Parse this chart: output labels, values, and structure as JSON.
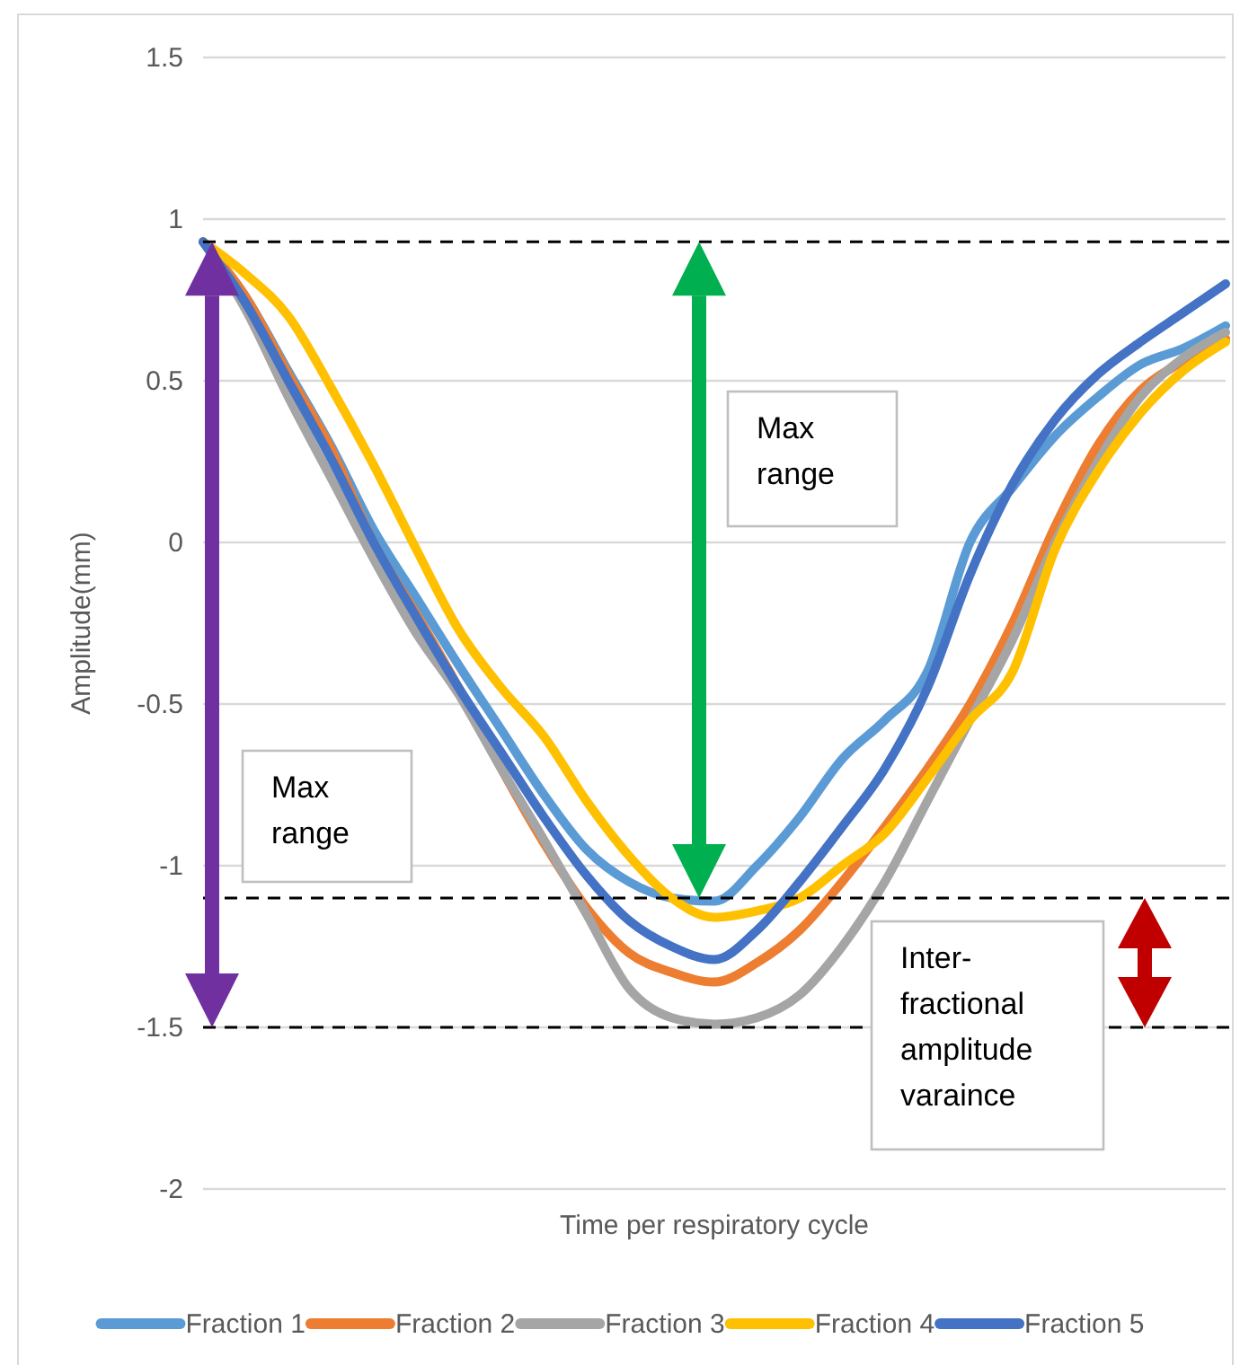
{
  "chart_data": {
    "type": "line",
    "xlabel": "Time per respiratory cycle",
    "ylabel": "Amplitude(mm)",
    "categories": [
      null,
      null,
      null,
      null,
      null,
      null,
      null,
      null,
      null,
      null,
      null,
      null,
      null,
      null,
      null,
      null,
      null,
      null,
      null,
      null,
      null,
      null,
      null,
      null,
      null
    ],
    "series": [
      {
        "name": "Fraction 1",
        "color": "#5b9bd5",
        "values": [
          0.93,
          0.76,
          0.53,
          0.3,
          0.04,
          -0.17,
          -0.38,
          -0.58,
          -0.78,
          -0.95,
          -1.05,
          -1.1,
          -1.11,
          -1.0,
          -0.85,
          -0.67,
          -0.55,
          -0.4,
          0.0,
          0.17,
          0.33,
          0.45,
          0.55,
          0.6,
          0.67
        ]
      },
      {
        "name": "Fraction 2",
        "color": "#ed7d31",
        "values": [
          0.93,
          0.76,
          0.52,
          0.29,
          0.0,
          -0.22,
          -0.45,
          -0.7,
          -0.93,
          -1.13,
          -1.27,
          -1.33,
          -1.36,
          -1.3,
          -1.2,
          -1.05,
          -0.88,
          -0.7,
          -0.5,
          -0.25,
          0.05,
          0.3,
          0.47,
          0.56,
          0.63
        ]
      },
      {
        "name": "Fraction 3",
        "color": "#a5a5a5",
        "values": [
          0.93,
          0.72,
          0.45,
          0.2,
          -0.05,
          -0.28,
          -0.47,
          -0.7,
          -0.92,
          -1.15,
          -1.38,
          -1.47,
          -1.49,
          -1.47,
          -1.4,
          -1.25,
          -1.05,
          -0.8,
          -0.55,
          -0.3,
          0.0,
          0.25,
          0.45,
          0.57,
          0.65
        ]
      },
      {
        "name": "Fraction 4",
        "color": "#ffc000",
        "values": [
          0.93,
          0.83,
          0.7,
          0.48,
          0.24,
          -0.02,
          -0.27,
          -0.45,
          -0.6,
          -0.8,
          -0.97,
          -1.1,
          -1.16,
          -1.14,
          -1.1,
          -1.0,
          -0.9,
          -0.73,
          -0.55,
          -0.4,
          -0.02,
          0.22,
          0.4,
          0.53,
          0.62
        ]
      },
      {
        "name": "Fraction 5",
        "color": "#4472c4",
        "values": [
          0.93,
          0.74,
          0.5,
          0.26,
          0.0,
          -0.23,
          -0.45,
          -0.65,
          -0.85,
          -1.03,
          -1.17,
          -1.25,
          -1.29,
          -1.2,
          -1.05,
          -0.88,
          -0.7,
          -0.45,
          -0.1,
          0.18,
          0.38,
          0.52,
          0.62,
          0.71,
          0.8
        ]
      }
    ],
    "ylim": [
      -2,
      1.5
    ],
    "yticks": [
      -2,
      -1.5,
      -1,
      -0.5,
      0,
      0.5,
      1,
      1.5
    ],
    "grid": "y",
    "legend": "bottom",
    "marker": "none",
    "line_style": "solid",
    "ref_lines": [
      {
        "axis": "y",
        "value": 0.93,
        "color": "#000000",
        "line_style": "dashed"
      },
      {
        "axis": "y",
        "value": -1.1,
        "color": "#000000",
        "line_style": "dashed"
      },
      {
        "axis": "y",
        "value": -1.5,
        "color": "#000000",
        "line_style": "dashed"
      }
    ],
    "annotations": [
      "Max range",
      "Max range",
      "Inter-fractional amplitude varaince"
    ]
  }
}
